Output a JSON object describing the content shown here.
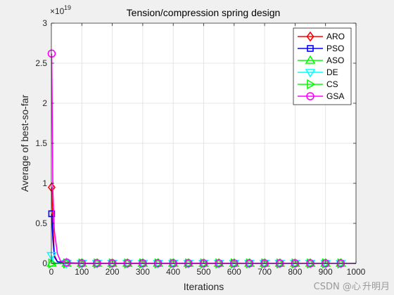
{
  "chart_data": {
    "type": "line",
    "title": "Tension/compression spring design",
    "xlabel": "Iterations",
    "ylabel": "Average of best-so-far",
    "xlim": [
      0,
      1000
    ],
    "ylim": [
      0,
      3
    ],
    "y_exponent_label": "×10",
    "y_exponent": "19",
    "xticks": [
      0,
      100,
      200,
      300,
      400,
      500,
      600,
      700,
      800,
      900,
      1000
    ],
    "yticks": [
      0,
      0.5,
      1,
      1.5,
      2,
      2.5,
      3
    ],
    "ytick_labels": [
      "0",
      "0.5",
      "1",
      "1.5",
      "2",
      "2.5",
      "3"
    ],
    "grid": true,
    "legend_position": "top-right",
    "series": [
      {
        "name": "ARO",
        "color": "#ff0000",
        "marker": "diamond",
        "x": [
          1,
          5,
          10,
          20,
          50,
          100,
          1000
        ],
        "y": [
          0.95,
          0.5,
          0.1,
          0.02,
          0.005,
          0.001,
          0
        ]
      },
      {
        "name": "PSO",
        "color": "#0000ff",
        "marker": "square",
        "x": [
          1,
          5,
          10,
          20,
          50,
          100,
          1000
        ],
        "y": [
          0.62,
          0.3,
          0.08,
          0.02,
          0.005,
          0.001,
          0
        ]
      },
      {
        "name": "ASO",
        "color": "#00ff00",
        "marker": "triangle-up",
        "x": [
          1,
          5,
          10,
          50,
          1000
        ],
        "y": [
          0.0,
          0.0,
          0.0,
          0.0,
          0
        ]
      },
      {
        "name": "DE",
        "color": "#00ffff",
        "marker": "triangle-down",
        "x": [
          1,
          5,
          10,
          20,
          50,
          1000
        ],
        "y": [
          0.1,
          0.04,
          0.01,
          0.003,
          0.001,
          0
        ]
      },
      {
        "name": "CS",
        "color": "#00ff00",
        "marker": "triangle-right",
        "x": [
          1,
          5,
          10,
          50,
          1000
        ],
        "y": [
          0.0,
          0.0,
          0.0,
          0.0,
          0
        ]
      },
      {
        "name": "GSA",
        "color": "#ff00ff",
        "marker": "circle",
        "x": [
          1,
          3,
          5,
          10,
          20,
          30,
          50,
          100,
          1000
        ],
        "y": [
          2.62,
          1.8,
          0.9,
          0.4,
          0.12,
          0.03,
          0.01,
          0.002,
          0
        ]
      }
    ],
    "marker_x": [
      1,
      50,
      100,
      150,
      200,
      250,
      300,
      350,
      400,
      450,
      500,
      550,
      600,
      650,
      700,
      750,
      800,
      850,
      900,
      950
    ]
  },
  "watermark": "CSDN @心 升明月"
}
